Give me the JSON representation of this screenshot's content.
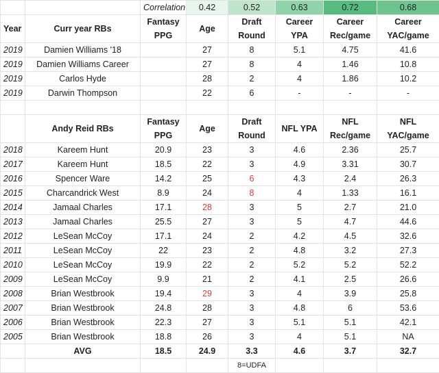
{
  "correlation": {
    "label": "Correlation",
    "values": [
      "0.42",
      "0.52",
      "0.63",
      "0.72",
      "0.68"
    ],
    "colors": [
      "#e8f5ec",
      "#bfe6cc",
      "#8fd3a9",
      "#57bb7f",
      "#6dc48e"
    ]
  },
  "curr_header": {
    "year": "Year",
    "title": "Curr year RBs",
    "cols": [
      [
        "Fantasy",
        "PPG"
      ],
      [
        "Age"
      ],
      [
        "Draft",
        "Round"
      ],
      [
        "Career",
        "YPA"
      ],
      [
        "Career",
        "Rec/game"
      ],
      [
        "Career",
        "YAC/game"
      ]
    ]
  },
  "curr_rows": [
    {
      "year": "2019",
      "name": "Damien Williams '18",
      "ppg": "",
      "age": "27",
      "round": "8",
      "ypa": "5.1",
      "rec": "4.75",
      "yac": "41.6"
    },
    {
      "year": "2019",
      "name": "Damien Williams Career",
      "ppg": "",
      "age": "27",
      "round": "8",
      "ypa": "4",
      "rec": "1.46",
      "yac": "10.8"
    },
    {
      "year": "2019",
      "name": "Carlos Hyde",
      "ppg": "",
      "age": "28",
      "round": "2",
      "ypa": "4",
      "rec": "1.86",
      "yac": "10.2"
    },
    {
      "year": "2019",
      "name": "Darwin Thompson",
      "ppg": "",
      "age": "22",
      "round": "6",
      "ypa": "-",
      "rec": "-",
      "yac": "-"
    }
  ],
  "reid_header": {
    "title": "Andy Reid RBs",
    "cols": [
      [
        "Fantasy",
        "PPG"
      ],
      [
        "Age"
      ],
      [
        "Draft",
        "Round"
      ],
      [
        "NFL YPA"
      ],
      [
        "NFL",
        "Rec/game"
      ],
      [
        "NFL",
        "YAC/game"
      ]
    ]
  },
  "reid_rows": [
    {
      "year": "2018",
      "name": "Kareem Hunt",
      "ppg": "20.9",
      "age": "23",
      "round": "3",
      "ypa": "4.6",
      "rec": "2.36",
      "yac": "25.7",
      "age_red": false,
      "round_red": false
    },
    {
      "year": "2017",
      "name": "Kareem Hunt",
      "ppg": "18.5",
      "age": "22",
      "round": "3",
      "ypa": "4.9",
      "rec": "3.31",
      "yac": "30.7",
      "age_red": false,
      "round_red": false
    },
    {
      "year": "2016",
      "name": "Spencer Ware",
      "ppg": "14.2",
      "age": "25",
      "round": "6",
      "ypa": "4.3",
      "rec": "2.4",
      "yac": "26.3",
      "age_red": false,
      "round_red": true
    },
    {
      "year": "2015",
      "name": "Charcandrick West",
      "ppg": "8.9",
      "age": "24",
      "round": "8",
      "ypa": "4",
      "rec": "1.33",
      "yac": "16.1",
      "age_red": false,
      "round_red": true
    },
    {
      "year": "2014",
      "name": "Jamaal Charles",
      "ppg": "17.1",
      "age": "28",
      "round": "3",
      "ypa": "5",
      "rec": "2.7",
      "yac": "21.0",
      "age_red": true,
      "round_red": false
    },
    {
      "year": "2013",
      "name": "Jamaal Charles",
      "ppg": "25.5",
      "age": "27",
      "round": "3",
      "ypa": "5",
      "rec": "4.7",
      "yac": "44.6",
      "age_red": false,
      "round_red": false
    },
    {
      "year": "2012",
      "name": "LeSean McCoy",
      "ppg": "17.1",
      "age": "24",
      "round": "2",
      "ypa": "4.2",
      "rec": "4.5",
      "yac": "32.6",
      "age_red": false,
      "round_red": false
    },
    {
      "year": "2011",
      "name": "LeSean McCoy",
      "ppg": "22",
      "age": "23",
      "round": "2",
      "ypa": "4.8",
      "rec": "3.2",
      "yac": "27.3",
      "age_red": false,
      "round_red": false
    },
    {
      "year": "2010",
      "name": "LeSean McCoy",
      "ppg": "19.9",
      "age": "22",
      "round": "2",
      "ypa": "5.2",
      "rec": "5.2",
      "yac": "52.2",
      "age_red": false,
      "round_red": false
    },
    {
      "year": "2009",
      "name": "LeSean McCoy",
      "ppg": "9.9",
      "age": "21",
      "round": "2",
      "ypa": "4.1",
      "rec": "2.5",
      "yac": "26.6",
      "age_red": false,
      "round_red": false
    },
    {
      "year": "2008",
      "name": "Brian Westbrook",
      "ppg": "19.4",
      "age": "29",
      "round": "3",
      "ypa": "4",
      "rec": "3.9",
      "yac": "25.8",
      "age_red": true,
      "round_red": false
    },
    {
      "year": "2007",
      "name": "Brian Westbrook",
      "ppg": "24.8",
      "age": "28",
      "round": "3",
      "ypa": "4.8",
      "rec": "6",
      "yac": "53.6",
      "age_red": false,
      "round_red": false
    },
    {
      "year": "2006",
      "name": "Brian Westbrook",
      "ppg": "22.3",
      "age": "27",
      "round": "3",
      "ypa": "5.1",
      "rec": "5.1",
      "yac": "42.1",
      "age_red": false,
      "round_red": false
    },
    {
      "year": "2005",
      "name": "Brian Westbrook",
      "ppg": "18.8",
      "age": "26",
      "round": "3",
      "ypa": "4",
      "rec": "5.1",
      "yac": "NA",
      "age_red": false,
      "round_red": false
    }
  ],
  "avg": {
    "label": "AVG",
    "ppg": "18.5",
    "age": "24.9",
    "round": "3.3",
    "ypa": "4.6",
    "rec": "3.7",
    "yac": "32.7"
  },
  "note": "8=UDFA"
}
